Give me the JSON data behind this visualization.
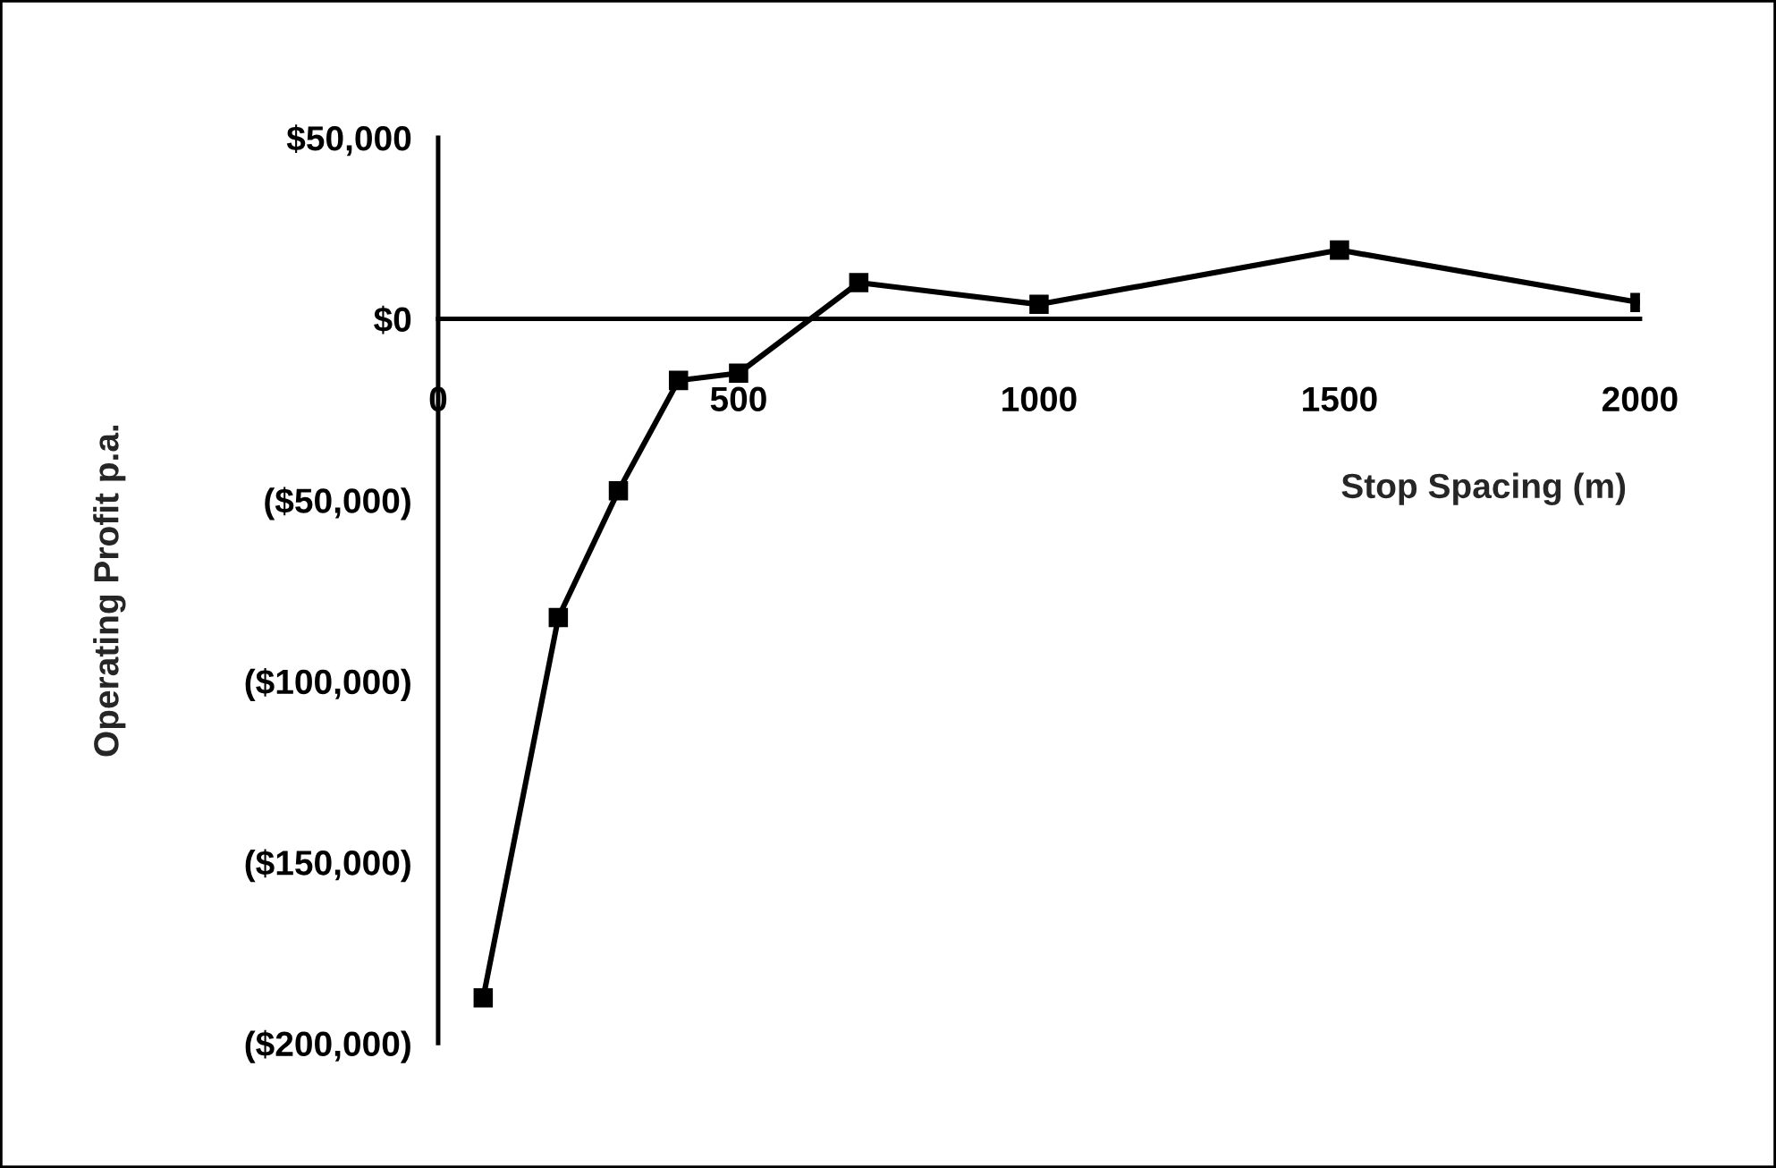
{
  "chart_data": {
    "type": "line",
    "xlabel": "Stop Spacing (m)",
    "ylabel": "Operating Profit p.a.",
    "x": [
      75,
      200,
      300,
      400,
      500,
      700,
      1000,
      1500,
      2000
    ],
    "series": [
      {
        "color": "#000000",
        "values": [
          -187500,
          -82500,
          -47500,
          -17000,
          -15000,
          10000,
          4000,
          19000,
          4500
        ]
      }
    ],
    "xlim": [
      0,
      2000
    ],
    "xticks": [
      0,
      500,
      1000,
      1500,
      2000
    ],
    "ylim": [
      -200000,
      50000
    ],
    "yticks": [
      {
        "value": 50000,
        "label": "$50,000"
      },
      {
        "value": 0,
        "label": "$0"
      },
      {
        "value": -50000,
        "label": "($50,000)"
      },
      {
        "value": -100000,
        "label": "($100,000)"
      },
      {
        "value": -150000,
        "label": "($150,000)"
      },
      {
        "value": -200000,
        "label": "($200,000)"
      }
    ],
    "grid": false,
    "legend": false,
    "marker": "square",
    "line_style": "solid"
  }
}
